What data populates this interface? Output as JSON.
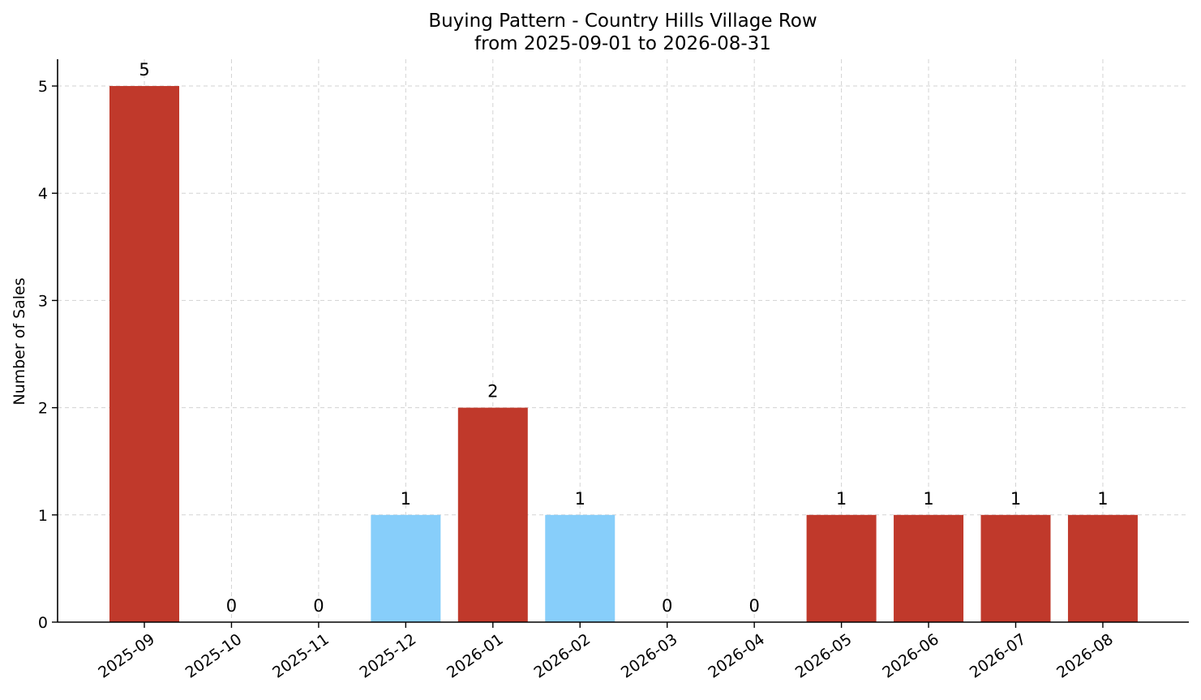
{
  "chart_data": {
    "type": "bar",
    "title": "Buying Pattern - Country Hills Village Row",
    "subtitle": "from 2025-09-01 to 2026-08-31",
    "xlabel": "",
    "ylabel": "Number of Sales",
    "categories": [
      "2025-09",
      "2025-10",
      "2025-11",
      "2025-12",
      "2026-01",
      "2026-02",
      "2026-03",
      "2026-04",
      "2026-05",
      "2026-06",
      "2026-07",
      "2026-08"
    ],
    "values": [
      5,
      0,
      0,
      1,
      2,
      1,
      0,
      0,
      1,
      1,
      1,
      1
    ],
    "bar_colors": [
      "#c0392b",
      "#c0392b",
      "#c0392b",
      "#87cefa",
      "#c0392b",
      "#87cefa",
      "#c0392b",
      "#c0392b",
      "#c0392b",
      "#c0392b",
      "#c0392b",
      "#c0392b"
    ],
    "ylim": [
      0,
      5.25
    ],
    "yticks": [
      "0",
      "1",
      "2",
      "3",
      "4",
      "5"
    ],
    "grid": true,
    "legend": "none"
  }
}
